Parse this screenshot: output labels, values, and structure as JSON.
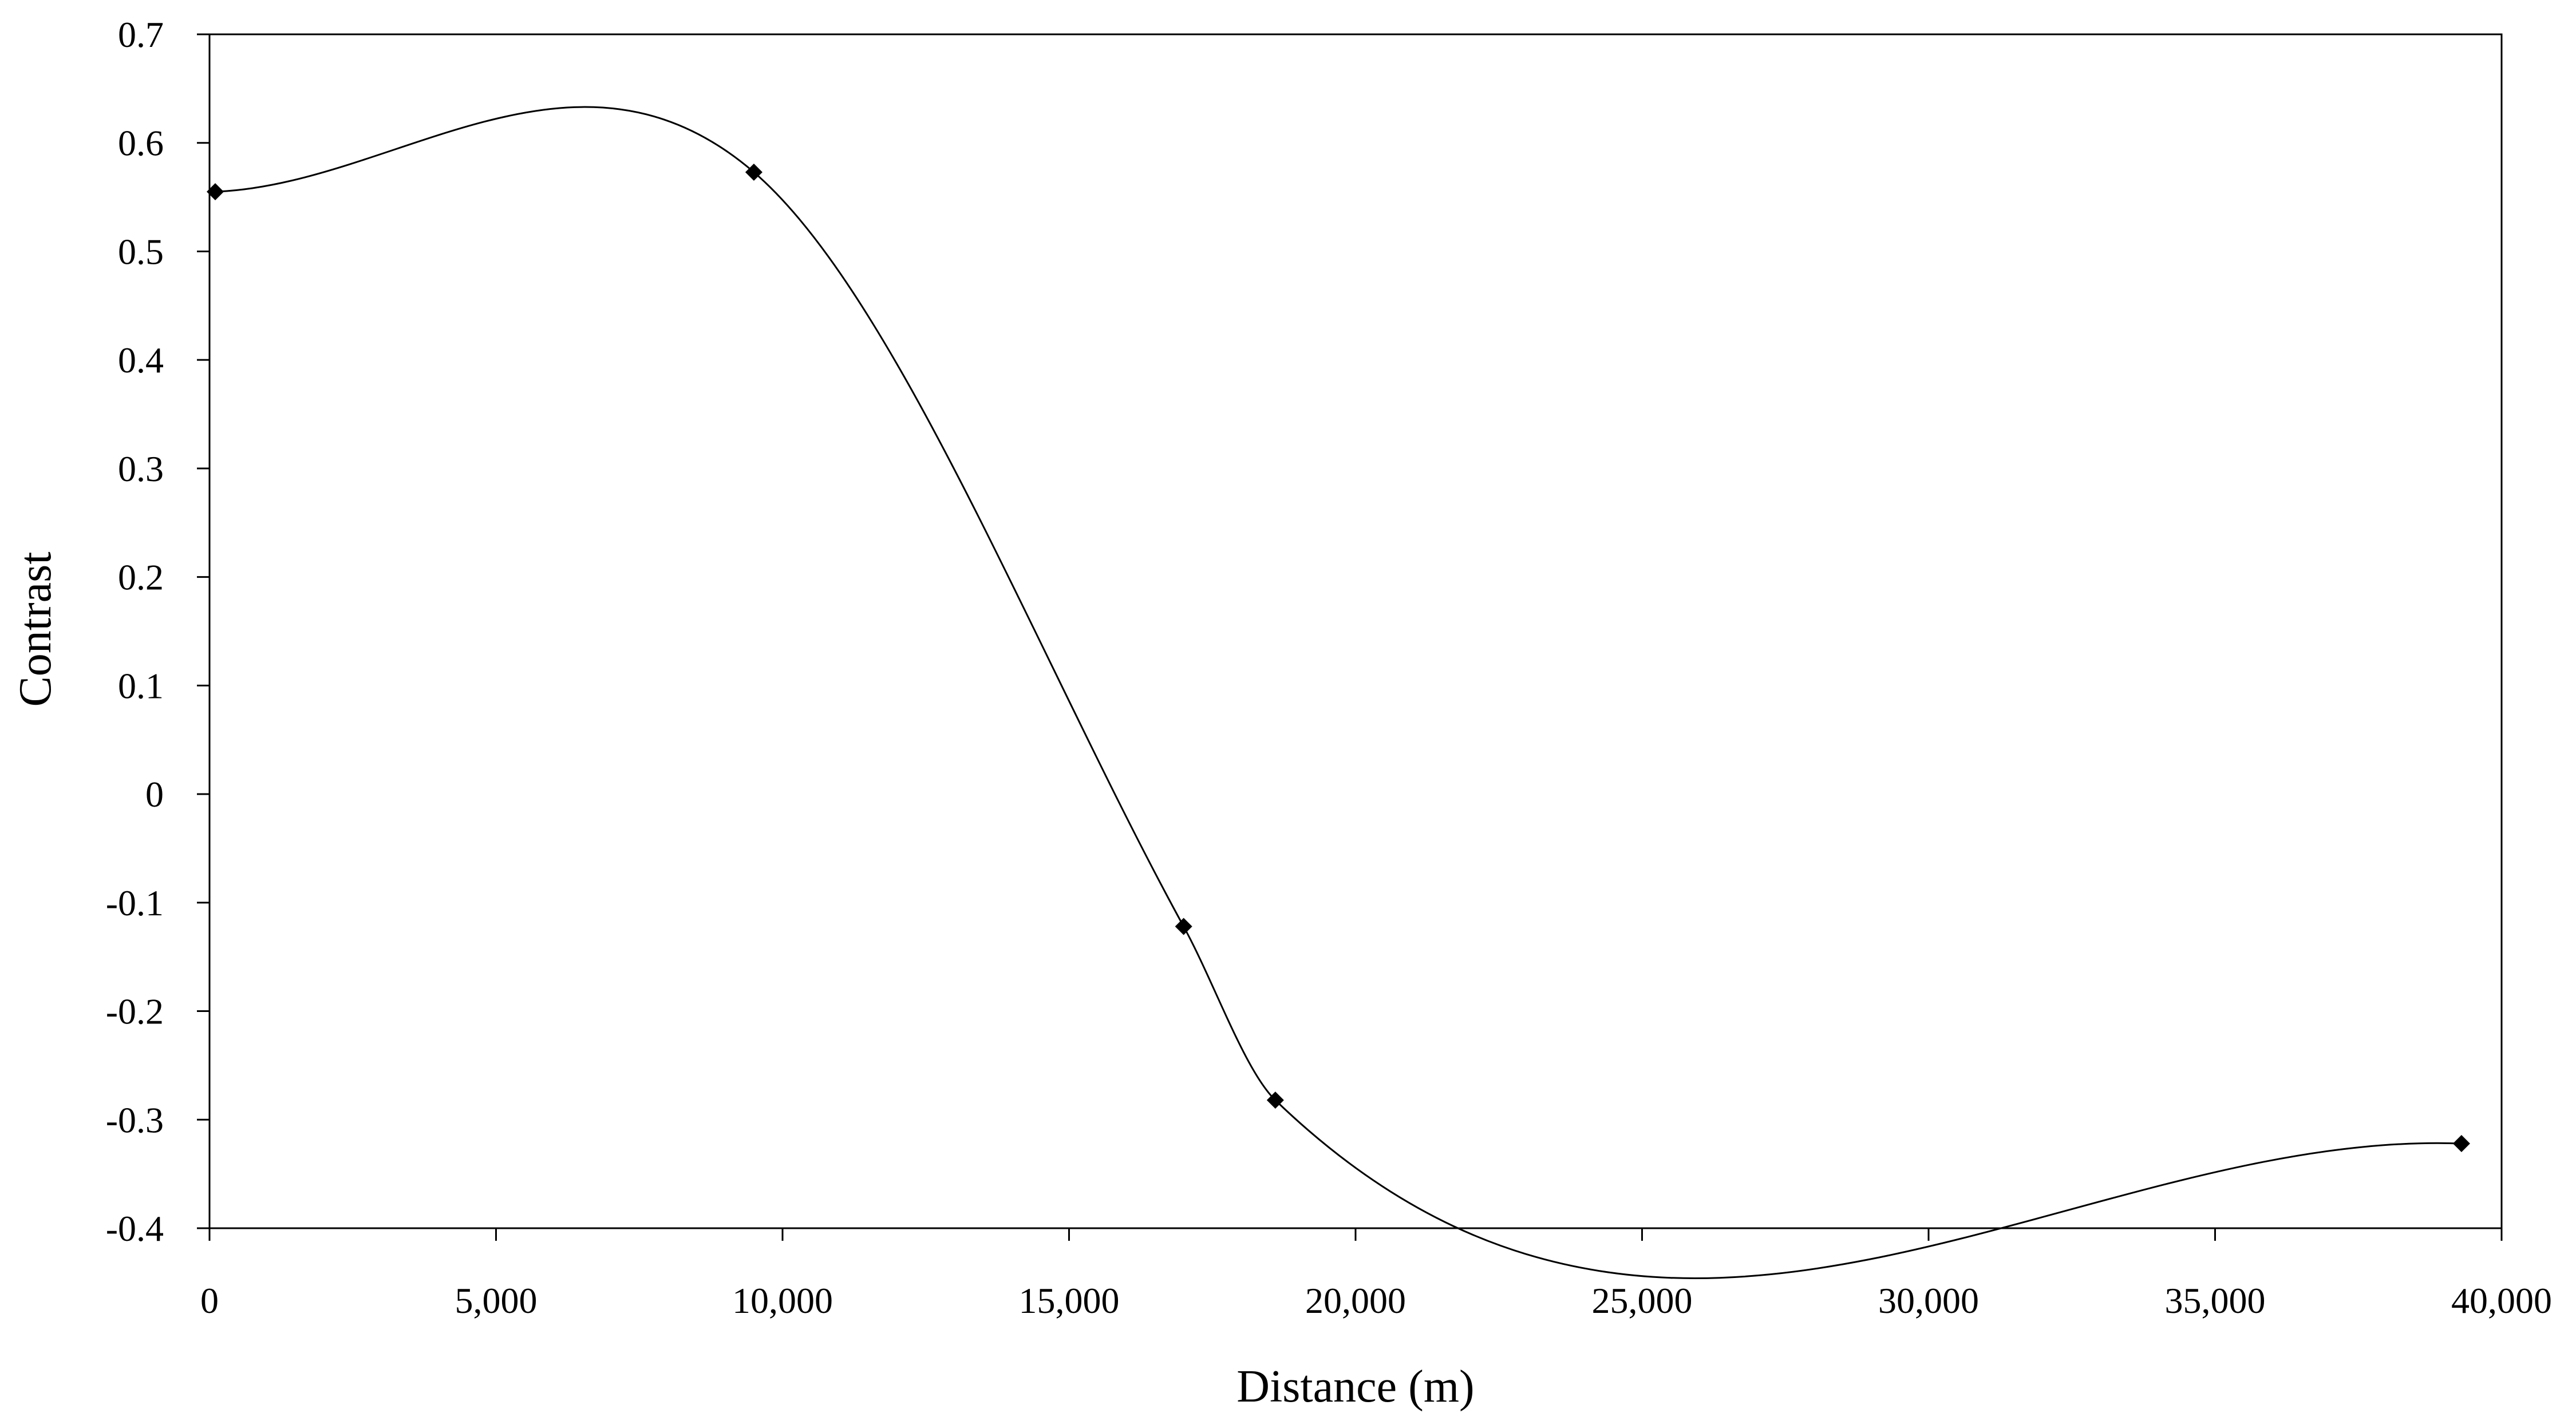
{
  "chart_data": {
    "type": "line",
    "title": "",
    "xlabel": "Distance (m)",
    "ylabel": "Contrast",
    "xlim": [
      0,
      40000
    ],
    "ylim": [
      -0.4,
      0.7
    ],
    "x_ticks": [
      0,
      5000,
      10000,
      15000,
      20000,
      25000,
      30000,
      35000,
      40000
    ],
    "x_tick_labels": [
      "0",
      "5,000",
      "10,000",
      "15,000",
      "20,000",
      "25,000",
      "30,000",
      "35,000",
      "40,000"
    ],
    "y_ticks": [
      -0.4,
      -0.3,
      -0.2,
      -0.1,
      0,
      0.1,
      0.2,
      0.3,
      0.4,
      0.5,
      0.6,
      0.7
    ],
    "y_tick_labels": [
      "-0.4",
      "-0.3",
      "-0.2",
      "-0.1",
      "0",
      "0.1",
      "0.2",
      "0.3",
      "0.4",
      "0.5",
      "0.6",
      "0.7"
    ],
    "grid": false,
    "legend": "none",
    "line_color": "#000000",
    "marker": "diamond",
    "smooth": true,
    "series": [
      {
        "points": [
          {
            "x": 100,
            "y": 0.555
          },
          {
            "x": 9500,
            "y": 0.573
          },
          {
            "x": 17000,
            "y": -0.122
          },
          {
            "x": 18600,
            "y": -0.282
          },
          {
            "x": 39300,
            "y": -0.322
          }
        ]
      }
    ]
  }
}
